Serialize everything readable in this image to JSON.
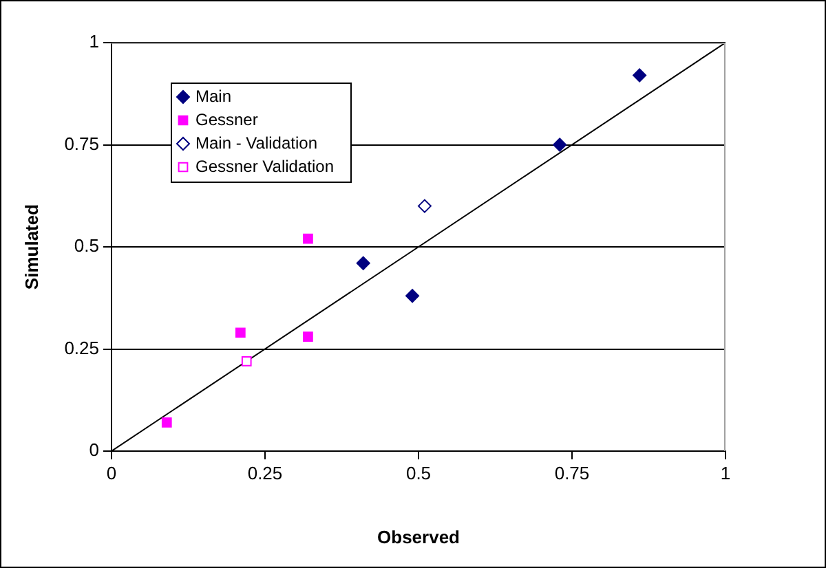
{
  "chart_data": {
    "type": "scatter",
    "xlabel": "Observed",
    "ylabel": "Simulated",
    "xlim": [
      0,
      1
    ],
    "ylim": [
      0,
      1
    ],
    "xticks": [
      0,
      0.25,
      0.5,
      0.75,
      1
    ],
    "yticks": [
      0,
      0.25,
      0.5,
      0.75,
      1
    ],
    "grid": "y",
    "legend": "top left",
    "series": [
      {
        "name": "Main",
        "color": "#000080",
        "marker": "diamond",
        "x": [
          0.41,
          0.49,
          0.73,
          0.86
        ],
        "values": [
          0.46,
          0.38,
          0.75,
          0.92
        ]
      },
      {
        "name": "Gessner",
        "color": "#ff00ff",
        "marker": "square",
        "x": [
          0.32,
          0.21,
          0.32,
          0.09
        ],
        "values": [
          0.52,
          0.29,
          0.28,
          0.07
        ]
      },
      {
        "name": "Main - Validation",
        "color": "#000080",
        "marker": "diamond-open",
        "x": [
          0.51
        ],
        "values": [
          0.6
        ]
      },
      {
        "name": "Gessner Validation",
        "color": "#ff00ff",
        "marker": "square-open",
        "x": [
          0.22
        ],
        "values": [
          0.22
        ]
      },
      {
        "type": "line",
        "color": "#000000",
        "marker": "none",
        "x": [
          0,
          1
        ],
        "values": [
          0,
          1
        ]
      }
    ]
  }
}
